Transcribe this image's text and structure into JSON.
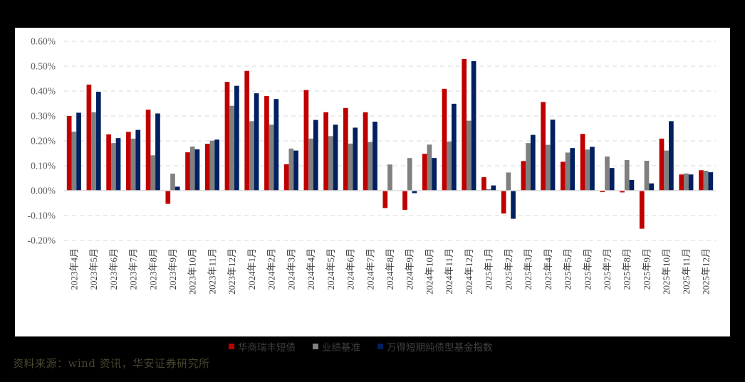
{
  "chart_data": {
    "type": "bar",
    "title": "",
    "xlabel": "",
    "ylabel": "",
    "ylim": [
      -0.2,
      0.6
    ],
    "yticks": [
      0.6,
      0.5,
      0.4,
      0.3,
      0.2,
      0.1,
      0.0,
      -0.1,
      -0.2
    ],
    "ytick_labels": [
      "0.60%",
      "0.50%",
      "0.40%",
      "0.30%",
      "0.20%",
      "0.10%",
      "0.00%",
      "-0.10%",
      "-0.20%"
    ],
    "grid": "horizontal dashed",
    "legend_position": "bottom",
    "unit": "%",
    "categories": [
      "2023年4月",
      "2023年5月",
      "2023年6月",
      "2023年7月",
      "2023年8月",
      "2023年9月",
      "2023年10月",
      "2023年11月",
      "2023年12月",
      "2024年1月",
      "2024年2月",
      "2024年3月",
      "2024年4月",
      "2024年5月",
      "2024年6月",
      "2024年7月",
      "2024年8月",
      "2024年9月",
      "2024年10月",
      "2024年11月",
      "2024年12月",
      "2025年1月",
      "2025年2月",
      "2025年3月",
      "2025年4月",
      "2025年5月",
      "2025年6月",
      "2025年7月",
      "2025年8月",
      "2025年9月",
      "2025年10月",
      "2025年11月",
      "2025年12月"
    ],
    "series": [
      {
        "name": "华商瑞丰短债",
        "color": "#C00000",
        "values": [
          0.3,
          0.426,
          0.226,
          0.236,
          0.325,
          -0.053,
          0.154,
          0.188,
          0.437,
          0.481,
          0.38,
          0.106,
          0.404,
          0.315,
          0.332,
          0.315,
          -0.07,
          -0.077,
          0.148,
          0.409,
          0.529,
          0.054,
          -0.092,
          0.119,
          0.356,
          0.116,
          0.228,
          -0.006,
          -0.007,
          -0.153,
          0.209,
          0.065,
          0.082
        ]
      },
      {
        "name": "业绩基准",
        "color": "#808080",
        "values": [
          0.237,
          0.315,
          0.191,
          0.209,
          0.142,
          0.068,
          0.177,
          0.201,
          0.341,
          0.279,
          0.265,
          0.169,
          0.209,
          0.219,
          0.189,
          0.195,
          0.105,
          0.131,
          0.185,
          0.197,
          0.281,
          0.006,
          0.073,
          0.191,
          0.184,
          0.153,
          0.165,
          0.137,
          0.123,
          0.12,
          0.161,
          0.069,
          0.08
        ]
      },
      {
        "name": "万得短期纯债型基金指数",
        "color": "#002060",
        "values": [
          0.313,
          0.397,
          0.211,
          0.244,
          0.31,
          0.016,
          0.166,
          0.205,
          0.421,
          0.391,
          0.368,
          0.161,
          0.284,
          0.265,
          0.253,
          0.277,
          0.0,
          -0.01,
          0.131,
          0.349,
          0.52,
          0.021,
          -0.113,
          0.224,
          0.285,
          0.171,
          0.176,
          0.091,
          0.043,
          0.029,
          0.279,
          0.065,
          0.074
        ]
      }
    ]
  },
  "legend": {
    "items": [
      {
        "label": "华商瑞丰短债",
        "color": "#C00000"
      },
      {
        "label": "业绩基准",
        "color": "#808080"
      },
      {
        "label": "万得短期纯债型基金指数",
        "color": "#002060"
      }
    ]
  },
  "source": {
    "text": "资料来源：wind 资讯，华安证券研究所"
  }
}
